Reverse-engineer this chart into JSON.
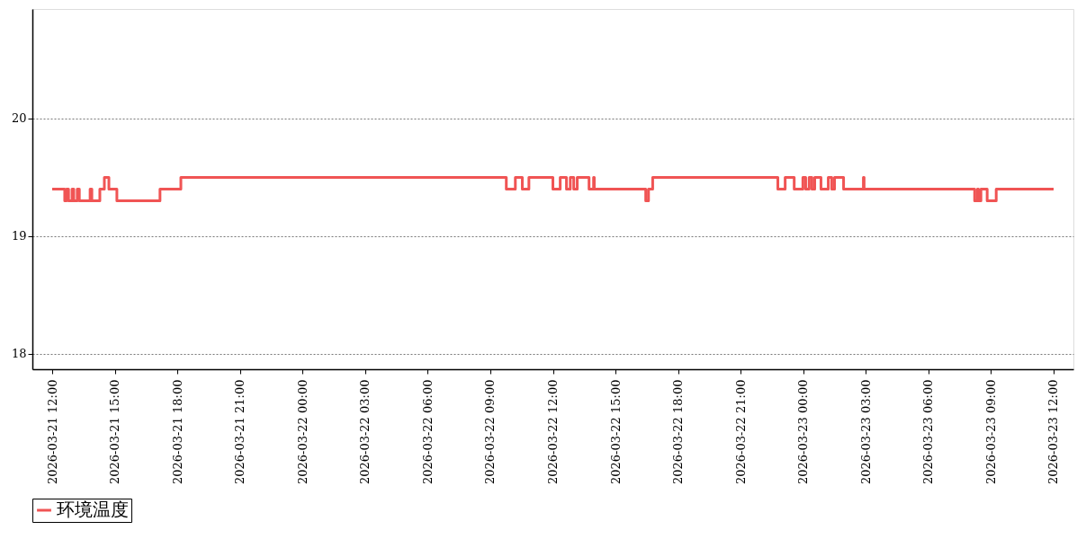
{
  "chart_data": {
    "type": "step",
    "legend": "bottom",
    "grid": "y",
    "line_style": "solid",
    "marker": "none",
    "xlim": [
      "2026-03-21T11:03",
      "2026-03-23T12:57"
    ],
    "xticks": [
      {
        "value": "2026-03-21T12:00",
        "label": "2026-03-21  12:00"
      },
      {
        "value": "2026-03-21T15:00",
        "label": "2026-03-21  15:00"
      },
      {
        "value": "2026-03-21T18:00",
        "label": "2026-03-21  18:00"
      },
      {
        "value": "2026-03-21T21:00",
        "label": "2026-03-21  21:00"
      },
      {
        "value": "2026-03-22T00:00",
        "label": "2026-03-22  00:00"
      },
      {
        "value": "2026-03-22T03:00",
        "label": "2026-03-22  03:00"
      },
      {
        "value": "2026-03-22T06:00",
        "label": "2026-03-22  06:00"
      },
      {
        "value": "2026-03-22T09:00",
        "label": "2026-03-22  09:00"
      },
      {
        "value": "2026-03-22T12:00",
        "label": "2026-03-22  12:00"
      },
      {
        "value": "2026-03-22T15:00",
        "label": "2026-03-22  15:00"
      },
      {
        "value": "2026-03-22T18:00",
        "label": "2026-03-22  18:00"
      },
      {
        "value": "2026-03-22T21:00",
        "label": "2026-03-22  21:00"
      },
      {
        "value": "2026-03-23T00:00",
        "label": "2026-03-23  00:00"
      },
      {
        "value": "2026-03-23T03:00",
        "label": "2026-03-23  03:00"
      },
      {
        "value": "2026-03-23T06:00",
        "label": "2026-03-23  06:00"
      },
      {
        "value": "2026-03-23T09:00",
        "label": "2026-03-23  09:00"
      },
      {
        "value": "2026-03-23T12:00",
        "label": "2026-03-23  12:00"
      }
    ],
    "ylim": [
      17.87,
      20.93
    ],
    "yticks": [
      18,
      19,
      20
    ],
    "x": [
      "2026-03-21T12:00",
      "2026-03-21T12:36",
      "2026-03-21T12:41",
      "2026-03-21T12:47",
      "2026-03-21T12:57",
      "2026-03-21T13:02",
      "2026-03-21T13:12",
      "2026-03-21T13:18",
      "2026-03-21T13:49",
      "2026-03-21T13:54",
      "2026-03-21T14:17",
      "2026-03-21T14:30",
      "2026-03-21T14:43",
      "2026-03-21T15:06",
      "2026-03-21T17:10",
      "2026-03-21T18:10",
      "2026-03-22T09:46",
      "2026-03-22T10:12",
      "2026-03-22T10:32",
      "2026-03-22T10:51",
      "2026-03-22T12:00",
      "2026-03-22T12:21",
      "2026-03-22T12:39",
      "2026-03-22T12:50",
      "2026-03-22T13:00",
      "2026-03-22T13:10",
      "2026-03-22T13:44",
      "2026-03-22T13:57",
      "2026-03-22T13:59",
      "2026-03-22T16:27",
      "2026-03-22T16:35",
      "2026-03-22T16:47",
      "2026-03-22T22:47",
      "2026-03-22T23:08",
      "2026-03-22T23:34",
      "2026-03-22T23:59",
      "2026-03-23T00:07",
      "2026-03-23T00:17",
      "2026-03-23T00:25",
      "2026-03-23T00:33",
      "2026-03-23T00:51",
      "2026-03-23T01:12",
      "2026-03-23T01:22",
      "2026-03-23T01:30",
      "2026-03-23T01:56",
      "2026-03-23T02:53",
      "2026-03-23T02:55",
      "2026-03-23T08:13",
      "2026-03-23T08:21",
      "2026-03-23T08:24",
      "2026-03-23T08:31",
      "2026-03-23T08:49",
      "2026-03-23T09:15",
      "2026-03-23T12:00"
    ],
    "series": [
      {
        "name": "环境温度",
        "color": "#f05454",
        "values": [
          19.4,
          19.3,
          19.4,
          19.3,
          19.4,
          19.3,
          19.4,
          19.3,
          19.4,
          19.3,
          19.4,
          19.5,
          19.4,
          19.3,
          19.4,
          19.5,
          19.4,
          19.5,
          19.4,
          19.5,
          19.4,
          19.5,
          19.4,
          19.5,
          19.4,
          19.5,
          19.4,
          19.5,
          19.4,
          19.3,
          19.4,
          19.5,
          19.4,
          19.5,
          19.4,
          19.5,
          19.4,
          19.5,
          19.4,
          19.5,
          19.4,
          19.5,
          19.4,
          19.5,
          19.4,
          19.5,
          19.4,
          19.3,
          19.4,
          19.3,
          19.4,
          19.3,
          19.4,
          19.4
        ]
      }
    ]
  }
}
